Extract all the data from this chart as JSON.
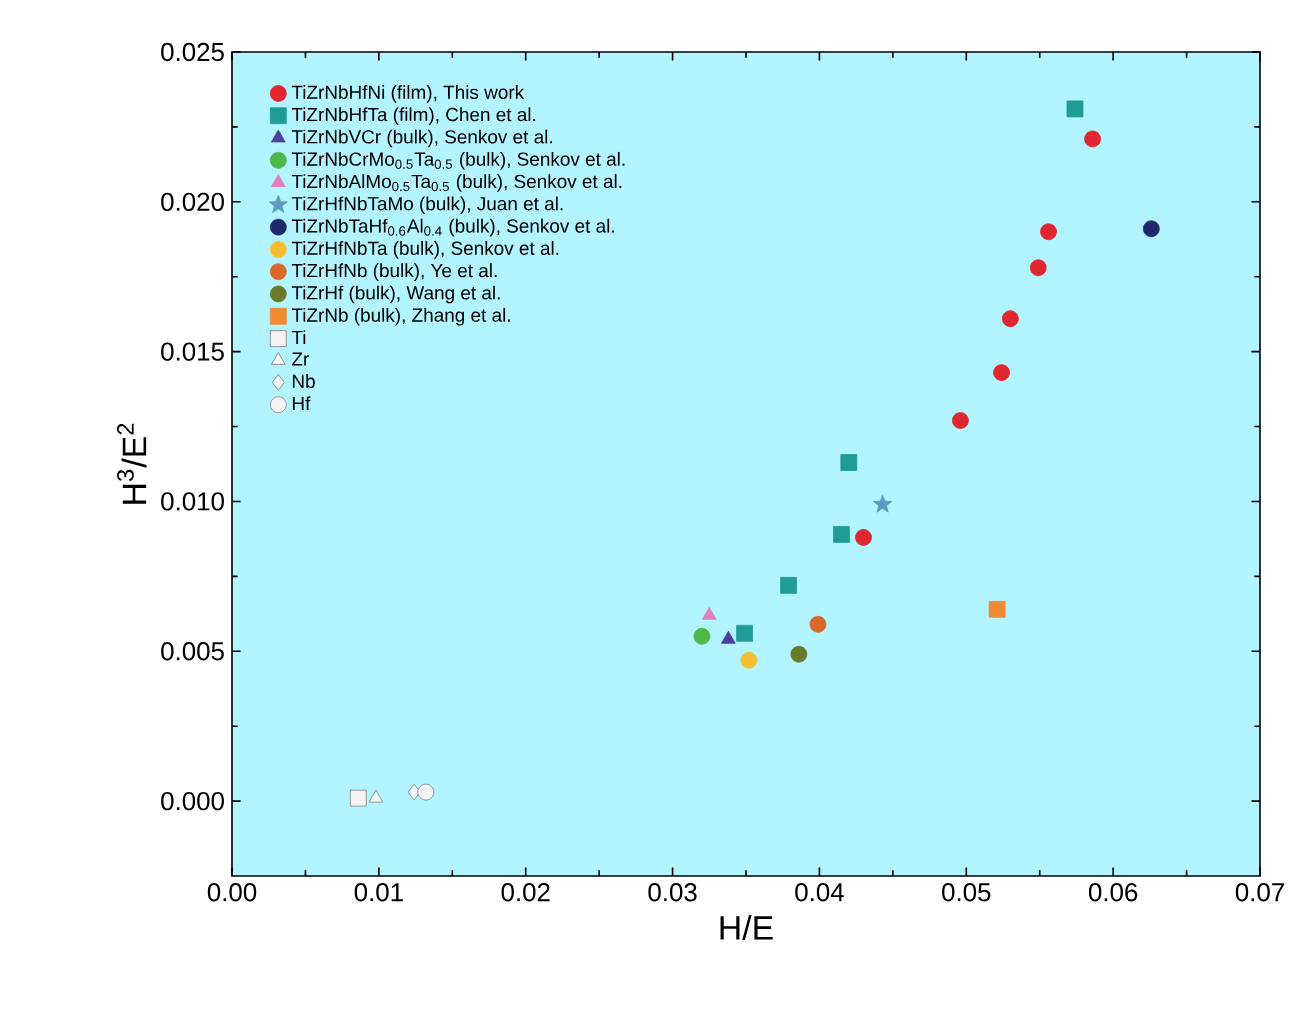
{
  "chart_data": {
    "type": "scatter",
    "xlabel": "H/E",
    "ylabel": "H$^{3}$/E$^{2}$",
    "xlim": [
      0,
      0.07
    ],
    "ylim": [
      -0.0025,
      0.025
    ],
    "xticks": [
      {
        "value": 0,
        "label": "0.00"
      },
      {
        "value": 0.01,
        "label": "0.01"
      },
      {
        "value": 0.02,
        "label": "0.02"
      },
      {
        "value": 0.03,
        "label": "0.03"
      },
      {
        "value": 0.04,
        "label": "0.04"
      },
      {
        "value": 0.05,
        "label": "0.05"
      },
      {
        "value": 0.06,
        "label": "0.06"
      },
      {
        "value": 0.07,
        "label": "0.07"
      }
    ],
    "yticks": [
      {
        "value": 0,
        "label": "0.000"
      },
      {
        "value": 0.005,
        "label": "0.005"
      },
      {
        "value": 0.01,
        "label": "0.010"
      },
      {
        "value": 0.015,
        "label": "0.015"
      },
      {
        "value": 0.02,
        "label": "0.020"
      },
      {
        "value": 0.025,
        "label": "0.025"
      }
    ],
    "legend": "top left",
    "grid": false,
    "series": [
      {
        "name": "TiZrNbHfNi (film), This work",
        "color": "#e0262e",
        "marker": "circle",
        "x": [
          0.0586,
          0.0556,
          0.0549,
          0.053,
          0.0524,
          0.0496,
          0.043
        ],
        "values": [
          0.0221,
          0.019,
          0.0178,
          0.0161,
          0.0143,
          0.0127,
          0.0088
        ]
      },
      {
        "name": "TiZrNbHfTa (film), Chen et al.",
        "color": "#1f9c94",
        "marker": "square",
        "x": [
          0.0574,
          0.042,
          0.0415,
          0.0379,
          0.0349
        ],
        "values": [
          0.0231,
          0.0113,
          0.0089,
          0.0072,
          0.0056
        ]
      },
      {
        "name": "TiZrNbVCr (bulk), Senkov et al.",
        "color": "#4b3fa0",
        "marker": "triangle",
        "x": [
          0.0338
        ],
        "values": [
          0.0054
        ]
      },
      {
        "name": "TiZrNbCrMo$_{0.5}$Ta$_{0.5}$ (bulk), Senkov et al.",
        "color": "#4cb847",
        "marker": "circle",
        "x": [
          0.032
        ],
        "values": [
          0.0055
        ]
      },
      {
        "name": "TiZrNbAlMo$_{0.5}$Ta$_{0.5}$ (bulk), Senkov et al.",
        "color": "#e07fc0",
        "marker": "triangle",
        "x": [
          0.0325
        ],
        "values": [
          0.0062
        ]
      },
      {
        "name": "TiZrHfNbTaMo (bulk), Juan et al.",
        "color": "#5a9cc0",
        "marker": "star",
        "x": [
          0.0443
        ],
        "values": [
          0.0099
        ]
      },
      {
        "name": "TiZrNbTaHf$_{0.6}$Al$_{0.4}$ (bulk), Senkov et al.",
        "color": "#1f2a6e",
        "marker": "circle",
        "x": [
          0.0626
        ],
        "values": [
          0.0191
        ]
      },
      {
        "name": "TiZrHfNbTa (bulk), Senkov et al.",
        "color": "#f5c030",
        "marker": "circle",
        "x": [
          0.0352
        ],
        "values": [
          0.0047
        ]
      },
      {
        "name": "TiZrHfNb (bulk), Ye et al.",
        "color": "#d9682a",
        "marker": "circle",
        "x": [
          0.0399
        ],
        "values": [
          0.0059
        ]
      },
      {
        "name": "TiZrHf (bulk), Wang et al.",
        "color": "#6b7a2a",
        "marker": "circle",
        "x": [
          0.0386
        ],
        "values": [
          0.0049
        ]
      },
      {
        "name": "TiZrNb (bulk), Zhang et al.",
        "color": "#f08a30",
        "marker": "square",
        "x": [
          0.0521
        ],
        "values": [
          0.0064
        ]
      },
      {
        "name": "Ti",
        "color": "#f4f4f4",
        "marker": "square",
        "x": [
          0.0086
        ],
        "values": [
          0.0001
        ]
      },
      {
        "name": "Zr",
        "color": "#f4f4f4",
        "marker": "triangle",
        "x": [
          0.0098
        ],
        "values": [
          0.0001
        ]
      },
      {
        "name": "Nb",
        "color": "#f4f4f4",
        "marker": "diamond",
        "x": [
          0.0124
        ],
        "values": [
          0.0003
        ]
      },
      {
        "name": "Hf",
        "color": "#f4f4f4",
        "marker": "circle",
        "x": [
          0.0132
        ],
        "values": [
          0.0003
        ]
      }
    ]
  }
}
